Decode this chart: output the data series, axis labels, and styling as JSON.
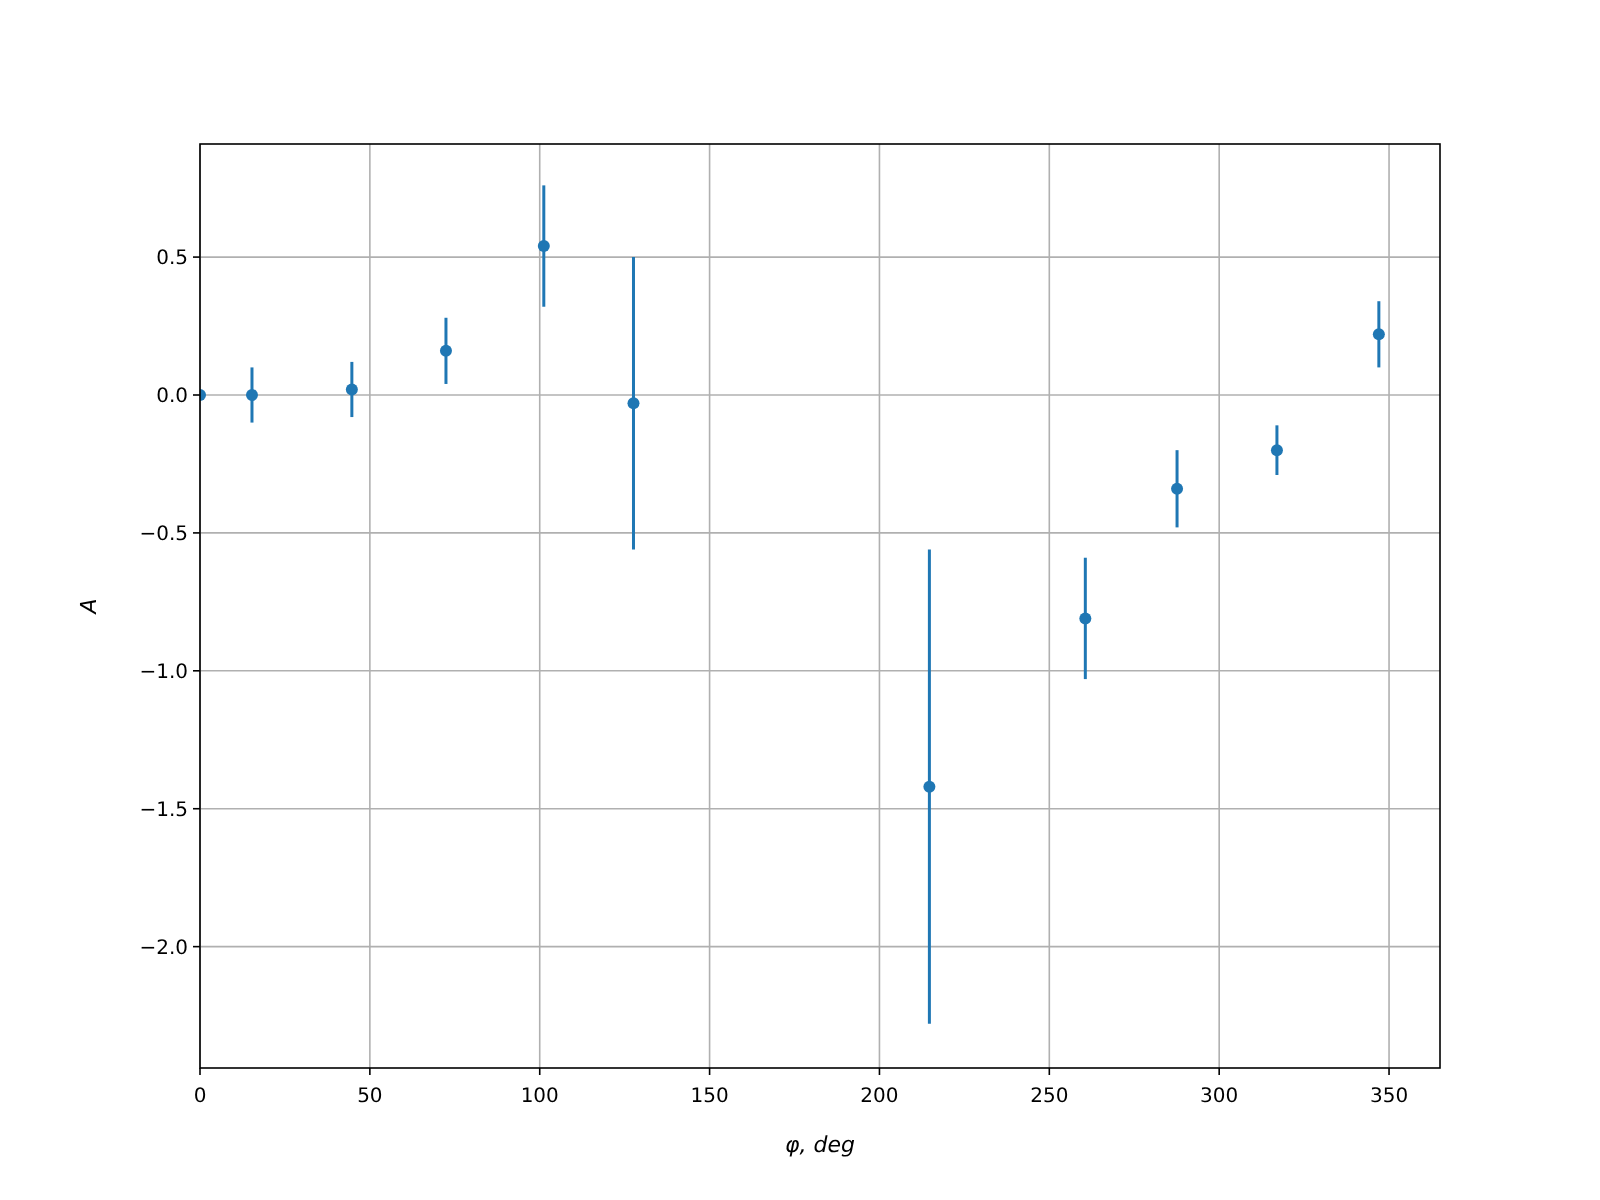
{
  "chart_data": {
    "type": "scatter",
    "xlabel": "φ, deg",
    "ylabel": "A",
    "x": [
      0,
      15.3,
      44.7,
      72.4,
      101.2,
      127.6,
      214.7,
      260.6,
      287.6,
      317,
      347
    ],
    "series": [
      {
        "color": "#1f77b4",
        "values": [
          0,
          0,
          0.02,
          0.16,
          0.54,
          -0.03,
          -1.42,
          -0.81,
          -0.34,
          -0.2,
          0.22
        ],
        "errors": [
          null,
          0.1,
          0.1,
          0.12,
          0.22,
          0.53,
          0.86,
          0.22,
          0.14,
          0.09,
          0.12
        ]
      }
    ],
    "xlim": [
      0,
      365
    ],
    "ylim": [
      -2.44,
      0.91
    ],
    "xticks": [
      0,
      50,
      100,
      150,
      200,
      250,
      300,
      350
    ],
    "yticks": [
      {
        "value": -2,
        "label": "−2.0"
      },
      {
        "value": -1.5,
        "label": "−1.5"
      },
      {
        "value": -1,
        "label": "−1.0"
      },
      {
        "value": -0.5,
        "label": "−0.5"
      },
      {
        "value": 0,
        "label": "0.0"
      },
      {
        "value": 0.5,
        "label": "0.5"
      }
    ],
    "grid": true,
    "marker": "circle"
  }
}
